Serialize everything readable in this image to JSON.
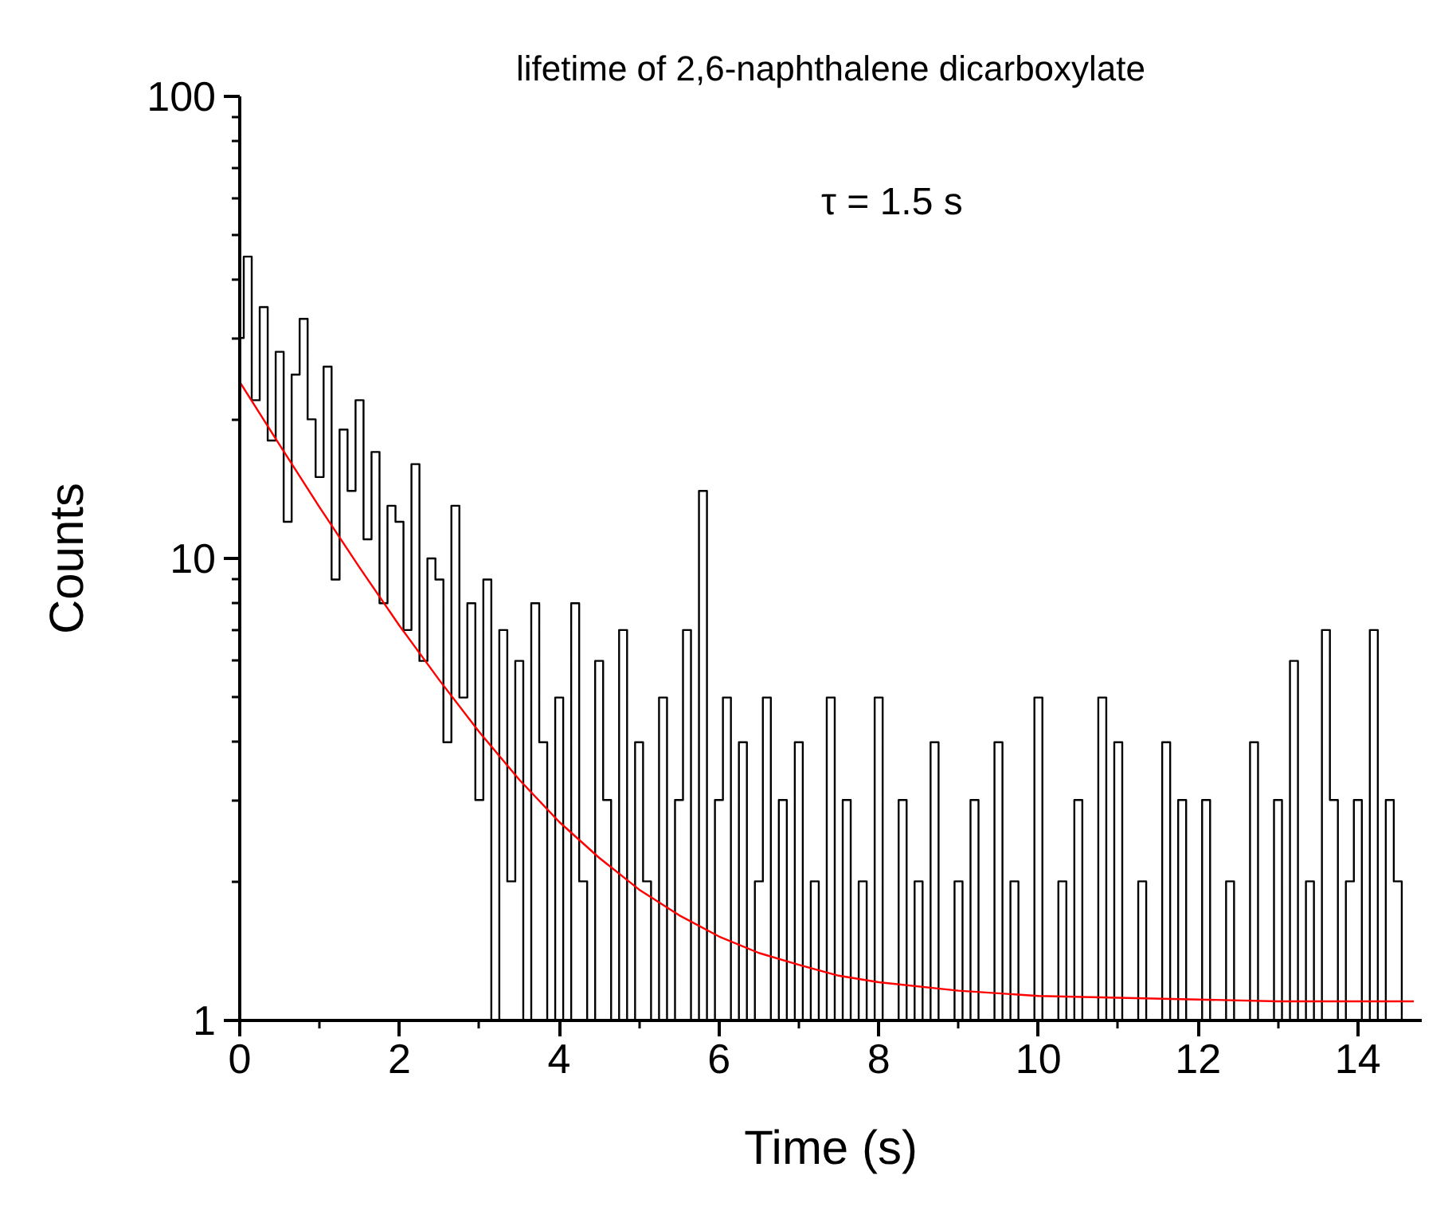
{
  "chart_data": {
    "type": "line",
    "title": "lifetime of 2,6-naphthalene dicarboxylate",
    "xlabel": "Time (s)",
    "ylabel": "Counts",
    "annotations": [
      "τ = 1.5 s"
    ],
    "log": "y",
    "grid": false,
    "line_style": "solid",
    "xlim": [
      0,
      14.8
    ],
    "ylim": [
      1,
      100
    ],
    "xticks": [
      0,
      2,
      4,
      6,
      8,
      10,
      12,
      14
    ],
    "yticks": [
      1,
      10,
      100
    ],
    "series": [
      {
        "type": "step",
        "color": "#000000",
        "x": [
          0.0,
          0.1,
          0.2,
          0.3,
          0.4,
          0.5,
          0.6,
          0.7,
          0.8,
          0.9,
          1.0,
          1.1,
          1.2,
          1.3,
          1.4,
          1.5,
          1.6,
          1.7,
          1.8,
          1.9,
          2.0,
          2.1,
          2.2,
          2.3,
          2.4,
          2.5,
          2.6,
          2.7,
          2.8,
          2.9,
          3.0,
          3.1,
          3.2,
          3.3,
          3.4,
          3.5,
          3.6,
          3.7,
          3.8,
          3.9,
          4.0,
          4.1,
          4.2,
          4.3,
          4.4,
          4.5,
          4.6,
          4.7,
          4.8,
          4.9,
          5.0,
          5.1,
          5.2,
          5.3,
          5.4,
          5.5,
          5.6,
          5.7,
          5.8,
          5.9,
          6.0,
          6.1,
          6.2,
          6.3,
          6.4,
          6.5,
          6.6,
          6.7,
          6.8,
          6.9,
          7.0,
          7.1,
          7.2,
          7.3,
          7.4,
          7.5,
          7.6,
          7.7,
          7.8,
          7.9,
          8.0,
          8.1,
          8.2,
          8.3,
          8.4,
          8.5,
          8.6,
          8.7,
          8.8,
          8.9,
          9.0,
          9.1,
          9.2,
          9.3,
          9.4,
          9.5,
          9.6,
          9.7,
          9.8,
          9.9,
          10.0,
          10.1,
          10.2,
          10.3,
          10.4,
          10.5,
          10.6,
          10.7,
          10.8,
          10.9,
          11.0,
          11.1,
          11.2,
          11.3,
          11.4,
          11.5,
          11.6,
          11.7,
          11.8,
          11.9,
          12.0,
          12.1,
          12.2,
          12.3,
          12.4,
          12.5,
          12.6,
          12.7,
          12.8,
          12.9,
          13.0,
          13.1,
          13.2,
          13.3,
          13.4,
          13.5,
          13.6,
          13.7,
          13.8,
          13.9,
          14.0,
          14.1,
          14.2,
          14.3,
          14.4,
          14.5,
          14.6,
          14.7
        ],
        "values": [
          30,
          45,
          22,
          35,
          18,
          28,
          12,
          25,
          33,
          20,
          15,
          26,
          9,
          19,
          14,
          22,
          11,
          17,
          8,
          13,
          12,
          7,
          16,
          6,
          10,
          9,
          4,
          13,
          5,
          8,
          3,
          9,
          1,
          7,
          2,
          6,
          1,
          8,
          4,
          1,
          5,
          1,
          8,
          2,
          1,
          6,
          3,
          1,
          7,
          1,
          4,
          2,
          1,
          5,
          1,
          3,
          7,
          1,
          14,
          1,
          3,
          5,
          1,
          4,
          1,
          2,
          5,
          1,
          3,
          1,
          4,
          1,
          2,
          1,
          5,
          1,
          3,
          1,
          2,
          1,
          5,
          1,
          1,
          3,
          1,
          2,
          1,
          4,
          1,
          1,
          2,
          1,
          3,
          1,
          1,
          4,
          1,
          2,
          1,
          1,
          5,
          1,
          1,
          2,
          1,
          3,
          1,
          1,
          5,
          1,
          4,
          1,
          1,
          2,
          1,
          1,
          4,
          1,
          3,
          1,
          1,
          3,
          1,
          1,
          2,
          1,
          1,
          4,
          1,
          1,
          3,
          1,
          6,
          1,
          2,
          1,
          7,
          3,
          1,
          2,
          3,
          1,
          7,
          1,
          3,
          2,
          1,
          1
        ]
      },
      {
        "color": "#ff0000",
        "x": [
          0,
          0.5,
          1,
          1.5,
          2,
          2.5,
          3,
          3.5,
          4,
          4.5,
          5,
          5.5,
          6,
          6.5,
          7,
          7.5,
          8,
          9,
          10,
          11,
          12,
          13,
          14,
          14.7
        ],
        "values": [
          24.1,
          17.6,
          12.9,
          9.56,
          7.15,
          5.45,
          4.21,
          3.32,
          2.69,
          2.25,
          1.92,
          1.69,
          1.52,
          1.4,
          1.32,
          1.25,
          1.21,
          1.16,
          1.13,
          1.12,
          1.11,
          1.1,
          1.1,
          1.1
        ]
      }
    ]
  }
}
